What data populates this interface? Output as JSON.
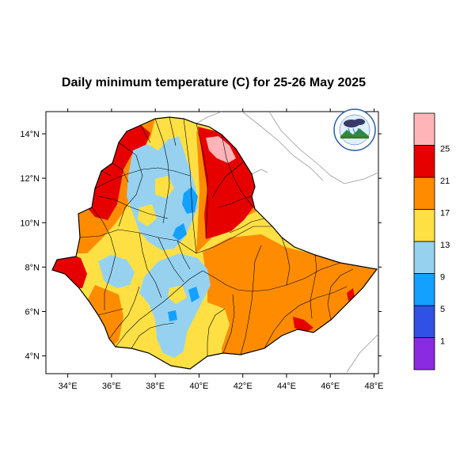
{
  "title": "Daily minimum temperature (C) for 25-26 May 2025",
  "map": {
    "lon_range": [
      33,
      48.2
    ],
    "lat_range": [
      3.2,
      15
    ],
    "lon_ticks": [
      34,
      36,
      38,
      40,
      42,
      44,
      46,
      48
    ],
    "lat_ticks": [
      4,
      6,
      8,
      10,
      12,
      14
    ],
    "lon_tick_labels": [
      "34°E",
      "36°E",
      "38°E",
      "40°E",
      "42°E",
      "44°E",
      "46°E",
      "48°E"
    ],
    "lat_tick_labels": [
      "4°N",
      "6°N",
      "8°N",
      "10°N",
      "12°N",
      "14°N"
    ]
  },
  "legend": {
    "bins": [
      {
        "color": "#8a2be2"
      },
      {
        "color": "#3050e6"
      },
      {
        "color": "#14a0ff"
      },
      {
        "color": "#96d2f0"
      },
      {
        "color": "#ffe044"
      },
      {
        "color": "#ff8c00"
      },
      {
        "color": "#e60000"
      },
      {
        "color": "#ffb4b8"
      }
    ],
    "boundaries": [
      "1",
      "5",
      "9",
      "13",
      "17",
      "21",
      "25"
    ]
  },
  "colors": {
    "country_fill": "#ffe044",
    "cold": "#96d2f0",
    "colder": "#14a0ff",
    "warm": "#ff8c00",
    "hot": "#e60000",
    "hottest": "#ffb4b8",
    "border": "#000000",
    "neighbor_border": "#999999"
  },
  "logo": {
    "icon": "meteorology-agency-logo"
  }
}
